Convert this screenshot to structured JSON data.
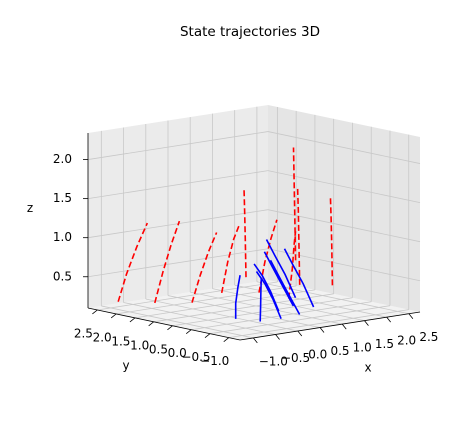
{
  "chart_data": {
    "type": "line3d",
    "title": "State trajectories 3D",
    "xlabel": "x",
    "ylabel": "y",
    "zlabel": "z",
    "xlim": [
      -1.3,
      2.75
    ],
    "ylim": [
      -1.3,
      2.75
    ],
    "zlim": [
      0.1,
      2.34
    ],
    "xticks": [
      {
        "value": -1.0,
        "label": "−1.0"
      },
      {
        "value": -0.5,
        "label": "−0.5"
      },
      {
        "value": 0.0,
        "label": "0.0"
      },
      0.5,
      {
        "value": 1.0,
        "label": "1.0"
      },
      1.5,
      {
        "value": 2.0,
        "label": "2.0"
      },
      2.5
    ],
    "yticks": [
      {
        "value": -1.0,
        "label": "−1.0"
      },
      {
        "value": -0.5,
        "label": "−0.5"
      },
      {
        "value": 0.0,
        "label": "0.0"
      },
      0.5,
      {
        "value": 1.0,
        "label": "1.0"
      },
      1.5,
      {
        "value": 2.0,
        "label": "2.0"
      },
      2.5
    ],
    "zticks": [
      0.5,
      {
        "value": 1.0,
        "label": "1.0"
      },
      1.5,
      {
        "value": 2.0,
        "label": "2.0"
      }
    ],
    "grid": true,
    "series": [
      {
        "color": "#ff0000",
        "linestyle": "dashed",
        "x": [
          -1.0,
          -0.9,
          -0.75,
          -0.6
        ],
        "y": [
          2.3,
          2.2,
          2.1,
          2.0
        ],
        "z": [
          0.2,
          0.55,
          0.9,
          1.2
        ]
      },
      {
        "color": "#ff0000",
        "linestyle": "dashed",
        "x": [
          -0.6,
          -0.5,
          -0.4,
          -0.3
        ],
        "y": [
          1.8,
          1.7,
          1.6,
          1.5
        ],
        "z": [
          0.2,
          0.6,
          0.95,
          1.25
        ]
      },
      {
        "color": "#ff0000",
        "linestyle": "dashed",
        "x": [
          -0.1,
          0.0,
          0.1,
          0.2
        ],
        "y": [
          1.4,
          1.3,
          1.2,
          1.1
        ],
        "z": [
          0.2,
          0.55,
          0.85,
          1.1
        ]
      },
      {
        "color": "#ff0000",
        "linestyle": "dashed",
        "x": [
          0.4,
          0.45,
          0.5,
          0.55
        ],
        "y": [
          1.2,
          1.1,
          1.0,
          0.9
        ],
        "z": [
          0.3,
          0.7,
          1.0,
          1.2
        ]
      },
      {
        "color": "#ff0000",
        "linestyle": "dashed",
        "x": [
          0.9,
          0.95,
          1.0,
          1.05
        ],
        "y": [
          0.8,
          0.7,
          0.6,
          0.5
        ],
        "z": [
          0.3,
          0.7,
          1.0,
          1.25
        ]
      },
      {
        "color": "#ff0000",
        "linestyle": "dashed",
        "x": [
          1.4,
          1.4,
          1.35,
          1.3
        ],
        "y": [
          0.6,
          0.5,
          0.4,
          0.3
        ],
        "z": [
          0.2,
          0.6,
          0.9,
          1.1
        ]
      },
      {
        "color": "#ff0000",
        "linestyle": "dashed",
        "x": [
          1.9,
          1.8,
          1.7,
          1.6
        ],
        "y": [
          0.9,
          0.8,
          0.7,
          0.6
        ],
        "z": [
          0.3,
          0.8,
          1.3,
          1.6
        ]
      },
      {
        "color": "#ff0000",
        "linestyle": "dashed",
        "x": [
          2.4,
          2.3,
          2.2,
          2.1
        ],
        "y": [
          1.6,
          1.5,
          1.4,
          1.3
        ],
        "z": [
          0.5,
          1.0,
          1.5,
          2.0
        ]
      },
      {
        "color": "#ff0000",
        "linestyle": "dashed",
        "x": [
          2.3,
          2.2,
          2.1,
          2.0
        ],
        "y": [
          0.5,
          0.4,
          0.3,
          0.2
        ],
        "z": [
          0.3,
          0.8,
          1.2,
          1.5
        ]
      },
      {
        "color": "#ff0000",
        "linestyle": "dashed",
        "x": [
          1.2,
          1.1,
          1.0,
          0.9
        ],
        "y": [
          1.5,
          1.4,
          1.3,
          1.2
        ],
        "z": [
          0.4,
          0.9,
          1.3,
          1.6
        ]
      },
      {
        "color": "#0000ff",
        "linestyle": "solid",
        "x": [
          -0.3,
          -0.3,
          -0.25,
          -0.2
        ],
        "y": [
          0.0,
          0.0,
          0.0,
          0.0
        ],
        "z": [
          0.15,
          0.35,
          0.55,
          0.7
        ]
      },
      {
        "color": "#0000ff",
        "linestyle": "solid",
        "x": [
          0.0,
          0.05,
          0.1,
          0.15
        ],
        "y": [
          -0.3,
          -0.25,
          -0.2,
          -0.15
        ],
        "z": [
          0.12,
          0.3,
          0.5,
          0.65
        ]
      },
      {
        "color": "#0000ff",
        "linestyle": "solid",
        "x": [
          0.3,
          0.2,
          0.1,
          0.0
        ],
        "y": [
          -0.5,
          -0.4,
          -0.3,
          -0.2
        ],
        "z": [
          0.15,
          0.4,
          0.6,
          0.75
        ]
      },
      {
        "color": "#0000ff",
        "linestyle": "solid",
        "x": [
          0.5,
          0.4,
          0.3,
          0.2
        ],
        "y": [
          -0.2,
          -0.1,
          0.0,
          0.1
        ],
        "z": [
          0.2,
          0.45,
          0.65,
          0.8
        ]
      },
      {
        "color": "#0000ff",
        "linestyle": "solid",
        "x": [
          0.8,
          0.65,
          0.5,
          0.4
        ],
        "y": [
          -0.4,
          -0.3,
          -0.2,
          -0.1
        ],
        "z": [
          0.15,
          0.4,
          0.65,
          0.85
        ]
      },
      {
        "color": "#0000ff",
        "linestyle": "solid",
        "x": [
          1.0,
          0.85,
          0.7,
          0.6
        ],
        "y": [
          0.0,
          0.1,
          0.2,
          0.3
        ],
        "z": [
          0.2,
          0.45,
          0.7,
          0.9
        ]
      },
      {
        "color": "#0000ff",
        "linestyle": "solid",
        "x": [
          1.2,
          1.05,
          0.9,
          0.8
        ],
        "y": [
          -0.3,
          -0.2,
          -0.1,
          0.0
        ],
        "z": [
          0.2,
          0.5,
          0.75,
          0.95
        ]
      },
      {
        "color": "#0000ff",
        "linestyle": "solid",
        "x": [
          1.3,
          1.15,
          1.0,
          0.9
        ],
        "y": [
          0.3,
          0.4,
          0.5,
          0.6
        ],
        "z": [
          0.25,
          0.55,
          0.8,
          1.0
        ]
      }
    ]
  }
}
